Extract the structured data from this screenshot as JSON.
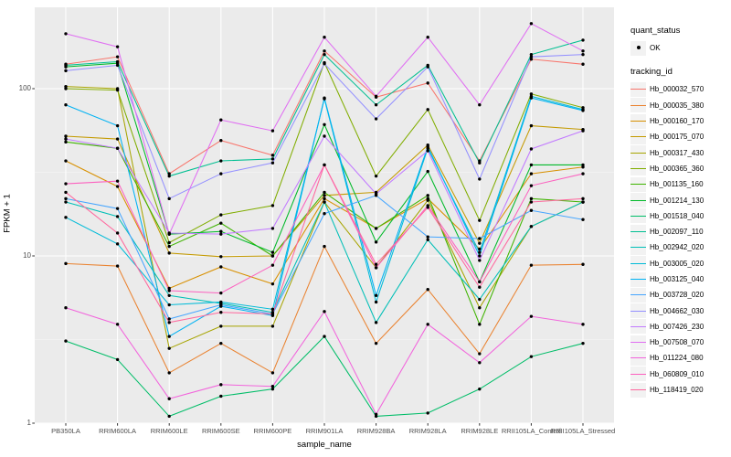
{
  "figure": {
    "x_axis_title": "sample_name",
    "y_axis_title": "FPKM + 1",
    "y_tick_labels": [
      "1",
      "10",
      "100"
    ],
    "legend": {
      "quant_title": "quant_status",
      "quant_items": [
        {
          "label": "OK",
          "key": "filled-black-point"
        }
      ],
      "tracking_title": "tracking_id"
    },
    "colors": {
      "panel_bg": "#EBEBEB",
      "grid_major": "#FFFFFF",
      "grid_minor": "#F7F7F7",
      "legend_key_bg": "#F2F2F2",
      "axis_text": "#4D4D4D",
      "tick_mark": "#333333",
      "point": "#000000"
    }
  },
  "chart_data": {
    "type": "line",
    "title": "",
    "xlabel": "sample_name",
    "ylabel": "FPKM + 1",
    "yscale": "log10",
    "ylim": [
      1,
      300
    ],
    "y_major_breaks": [
      1,
      10,
      100
    ],
    "y_minor_breaks": [
      3.162,
      31.62
    ],
    "grid": true,
    "legend_position": "right",
    "point_marker": "black filled circle (quant_status = OK)",
    "categories": [
      "PB350LA",
      "RRIM600LA",
      "RRIM600LE",
      "RRIM600SE",
      "RRIM600PE",
      "RRIM901LA",
      "RRIM928BA",
      "RRIM928LA",
      "RRIM928LE",
      "RRII105LA_Control",
      "RRII105LA_Stressed"
    ],
    "series": [
      {
        "name": "Hb_000032_570",
        "color": "#F8766D",
        "values": [
          140,
          155,
          31,
          49,
          40,
          168,
          89,
          108,
          37,
          150,
          140
        ]
      },
      {
        "name": "Hb_000035_380",
        "color": "#EA8331",
        "values": [
          9,
          8.7,
          2,
          3,
          2,
          11.4,
          3,
          6.3,
          2.6,
          8.8,
          8.9
        ]
      },
      {
        "name": "Hb_000160_170",
        "color": "#D89000",
        "values": [
          37,
          26,
          6.4,
          8.6,
          6.8,
          22,
          14.6,
          22,
          11,
          31,
          34
        ]
      },
      {
        "name": "Hb_000175_070",
        "color": "#C49A00",
        "values": [
          52,
          50,
          10.4,
          9.9,
          10,
          23,
          24,
          46,
          11.9,
          60,
          57
        ]
      },
      {
        "name": "Hb_000317_430",
        "color": "#A7A400",
        "values": [
          103,
          100,
          2.8,
          3.8,
          3.8,
          21,
          8.5,
          21.5,
          4.9,
          15,
          21
        ]
      },
      {
        "name": "Hb_000365_360",
        "color": "#81AD00",
        "values": [
          100,
          98,
          12,
          17.6,
          20,
          143,
          30,
          75,
          16.3,
          93,
          77
        ]
      },
      {
        "name": "Hb_001135_160",
        "color": "#3FB400",
        "values": [
          48,
          44,
          11.4,
          15.7,
          10,
          24,
          14.6,
          23,
          3.9,
          22,
          21
        ]
      },
      {
        "name": "Hb_001214_130",
        "color": "#00B929",
        "values": [
          135,
          142,
          13.5,
          14,
          10.5,
          61,
          12.1,
          32,
          7,
          35,
          35
        ]
      },
      {
        "name": "Hb_001518_040",
        "color": "#00BD68",
        "values": [
          3.1,
          2.4,
          1.1,
          1.45,
          1.6,
          3.3,
          1.1,
          1.15,
          1.6,
          2.5,
          3
        ]
      },
      {
        "name": "Hb_002097_110",
        "color": "#00BF92",
        "values": [
          138,
          145,
          30,
          37,
          38,
          160,
          80,
          138,
          36,
          160,
          195
        ]
      },
      {
        "name": "Hb_002942_020",
        "color": "#00BFB7",
        "values": [
          21,
          17.2,
          5.8,
          5.2,
          4.6,
          21,
          4,
          12.5,
          5.5,
          15,
          21
        ]
      },
      {
        "name": "Hb_003005_020",
        "color": "#00BBD8",
        "values": [
          17,
          11.8,
          5.1,
          5.3,
          4.8,
          87,
          5.3,
          44,
          10.5,
          90,
          75
        ]
      },
      {
        "name": "Hb_003125_040",
        "color": "#00B2F3",
        "values": [
          80,
          60,
          3.3,
          5,
          4.4,
          88,
          5.8,
          45,
          10,
          88,
          74
        ]
      },
      {
        "name": "Hb_003728_020",
        "color": "#45A5FF",
        "values": [
          22,
          19.2,
          4.2,
          5.1,
          4.5,
          17.9,
          23,
          13,
          12.7,
          18.7,
          16.5
        ]
      },
      {
        "name": "Hb_004662_030",
        "color": "#9490FF",
        "values": [
          128,
          138,
          22,
          31,
          36,
          141,
          66,
          135,
          28.8,
          155,
          160
        ]
      },
      {
        "name": "Hb_007426_230",
        "color": "#C27BFF",
        "values": [
          50,
          44,
          13.7,
          13.5,
          14.6,
          52,
          23.5,
          42.5,
          9.4,
          43.6,
          56
        ]
      },
      {
        "name": "Hb_007508_070",
        "color": "#E06EF2",
        "values": [
          213,
          178,
          13.5,
          65,
          56,
          203,
          90,
          203,
          80,
          245,
          168
        ]
      },
      {
        "name": "Hb_011224_080",
        "color": "#F264DC",
        "values": [
          4.9,
          3.9,
          1.4,
          1.7,
          1.66,
          4.65,
          1.13,
          3.9,
          2.3,
          4.35,
          3.9
        ]
      },
      {
        "name": "Hb_060809_010",
        "color": "#FC61BF",
        "values": [
          27,
          28,
          6.2,
          6,
          8.8,
          35,
          8.5,
          20,
          7,
          26.3,
          31
        ]
      },
      {
        "name": "Hb_118419_020",
        "color": "#FF689E",
        "values": [
          24,
          13.7,
          4,
          4.6,
          4.5,
          35,
          8.9,
          19.5,
          6.5,
          21,
          22
        ]
      }
    ]
  }
}
